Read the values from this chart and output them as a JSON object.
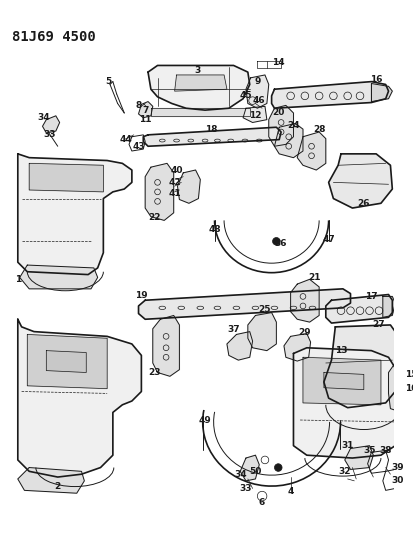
{
  "title": "81J69 4500",
  "background_color": "#ffffff",
  "line_color": "#1a1a1a",
  "fig_width": 4.14,
  "fig_height": 5.33,
  "dpi": 100
}
